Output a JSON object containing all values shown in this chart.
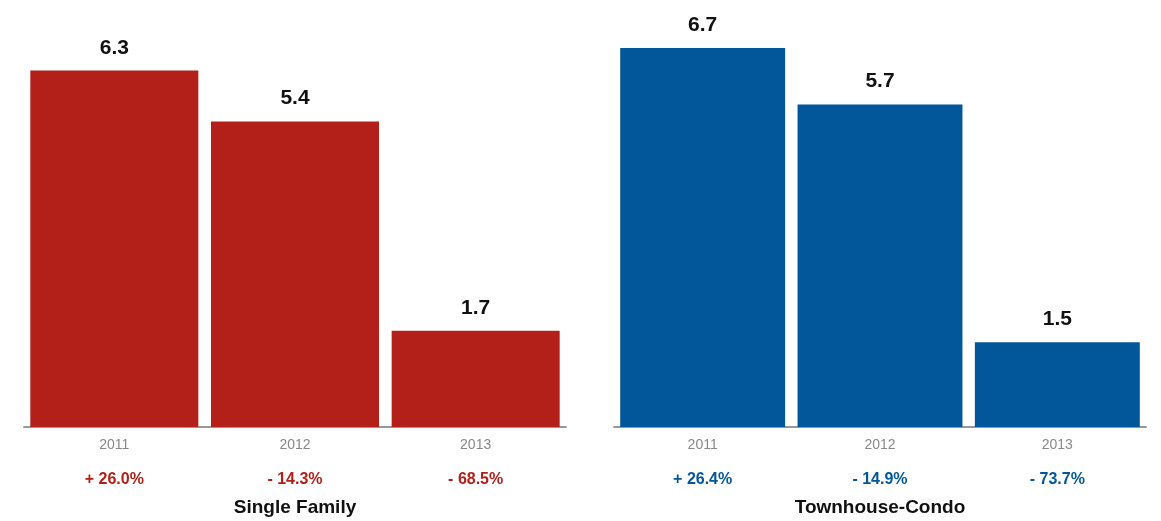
{
  "chart_data": [
    {
      "type": "bar",
      "xlabel": "Single Family",
      "categories": [
        "2011",
        "2012",
        "2013"
      ],
      "values": [
        6.3,
        5.4,
        1.7
      ],
      "color": "#b22019",
      "data_labels": true,
      "annotations": [
        "+ 26.0%",
        "- 14.3%",
        "- 68.5%"
      ]
    },
    {
      "type": "bar",
      "xlabel": "Townhouse-Condo",
      "categories": [
        "2011",
        "2012",
        "2013"
      ],
      "values": [
        6.7,
        5.7,
        1.5
      ],
      "color": "#02569a",
      "data_labels": true,
      "annotations": [
        "+ 26.4%",
        "- 14.9%",
        "- 73.7%"
      ]
    }
  ]
}
